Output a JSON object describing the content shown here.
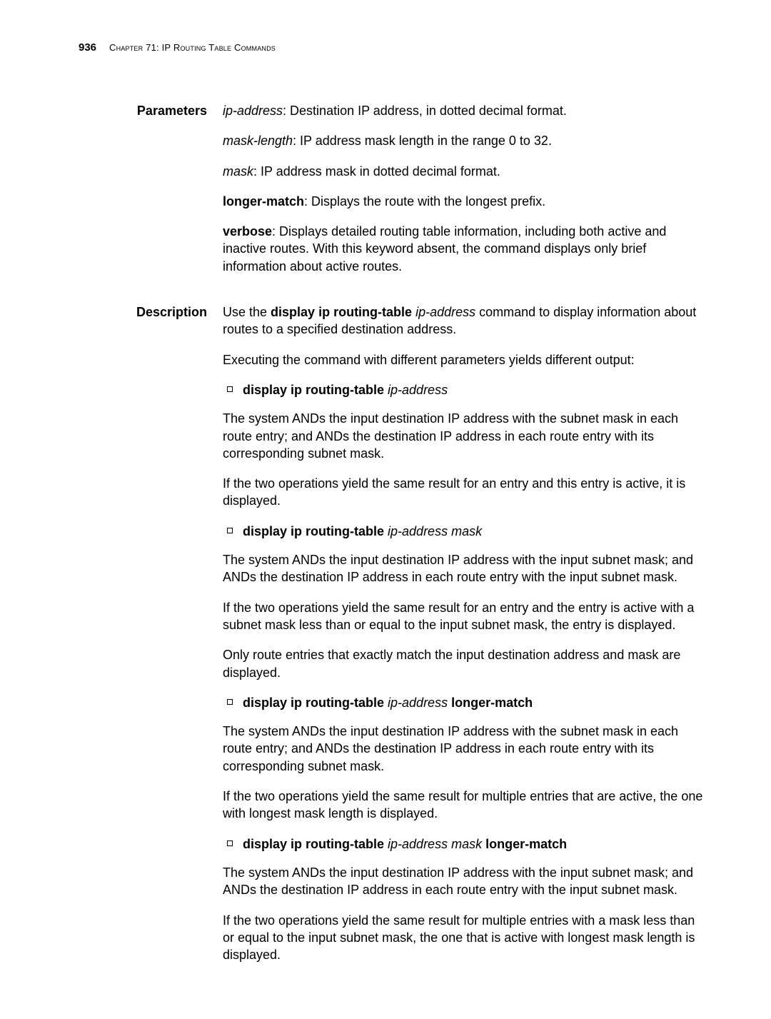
{
  "header": {
    "page_number": "936",
    "chapter": "Chapter 71: IP Routing Table Commands"
  },
  "sections": {
    "parameters": {
      "label": "Parameters",
      "ip_address_term": "ip-address",
      "ip_address_desc": ": Destination IP address, in dotted decimal format.",
      "mask_length_term": "mask-length",
      "mask_length_desc": ": IP address mask length in the range 0 to 32.",
      "mask_term": "mask",
      "mask_desc": ": IP address mask in dotted decimal format.",
      "longer_match_term": "longer-match",
      "longer_match_desc": ": Displays the route with the longest prefix.",
      "verbose_term": "verbose",
      "verbose_desc": ": Displays detailed routing table information, including both active and inactive routes. With this keyword absent, the command displays only brief information about active routes."
    },
    "description": {
      "label": "Description",
      "intro_pre": "Use the ",
      "intro_cmd": "display ip routing-table",
      "intro_space": " ",
      "intro_arg": "ip-address",
      "intro_post": " command to display information about routes to a specified destination address.",
      "executing": "Executing the command with different parameters yields different output:",
      "b1_cmd": "display ip routing-table",
      "b1_arg": "ip-address",
      "b1_p1": "The system ANDs the input destination IP address with the subnet mask in each route entry; and ANDs the destination IP address in each route entry with its corresponding subnet mask.",
      "b1_p2": "If the two operations yield the same result for an entry and this entry is active, it is displayed.",
      "b2_cmd": "display ip routing-table",
      "b2_arg": "ip-address mask",
      "b2_p1": "The system ANDs the input destination IP address with the input subnet mask; and ANDs the destination IP address in each route entry with the input subnet mask.",
      "b2_p2": "If the two operations yield the same result for an entry and the entry is active with a subnet mask less than or equal to the input subnet mask, the entry is displayed.",
      "b2_p3": "Only route entries that exactly match the input destination address and mask are displayed.",
      "b3_cmd": "display ip routing-table",
      "b3_arg": "ip-address",
      "b3_suffix": "longer-match",
      "b3_p1": "The system ANDs the input destination IP address with the subnet mask in each route entry; and ANDs the destination IP address in each route entry with its corresponding subnet mask.",
      "b3_p2": "If the two operations yield the same result for multiple entries that are active, the one with longest mask length is displayed.",
      "b4_cmd": "display ip routing-table",
      "b4_arg": "ip-address mask",
      "b4_suffix": "longer-match",
      "b4_p1": "The system ANDs the input destination IP address with the input subnet mask; and ANDs the destination IP address in each route entry with the input subnet mask.",
      "b4_p2": "If the two operations yield the same result for multiple entries with a mask less than or equal to the input subnet mask, the one that is active with longest mask length is displayed."
    }
  }
}
